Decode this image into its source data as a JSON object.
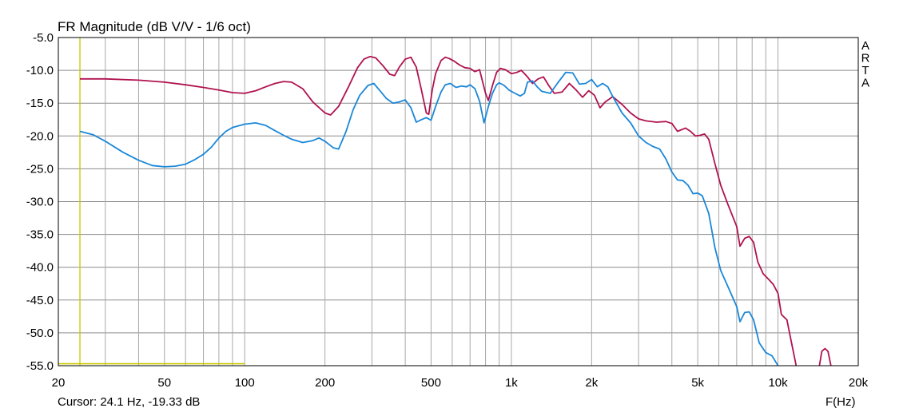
{
  "chart_data": {
    "type": "line",
    "title": "FR Magnitude (dB V/V - 1/6 oct)",
    "xlabel": "F(Hz)",
    "ylabel": "",
    "x_scale": "log",
    "xlim": [
      20,
      20000
    ],
    "ylim": [
      -55,
      -5
    ],
    "x_ticks": [
      {
        "v": 20,
        "label": "20"
      },
      {
        "v": 50,
        "label": "50"
      },
      {
        "v": 100,
        "label": "100"
      },
      {
        "v": 200,
        "label": "200"
      },
      {
        "v": 500,
        "label": "500"
      },
      {
        "v": 1000,
        "label": "1k"
      },
      {
        "v": 2000,
        "label": "2k"
      },
      {
        "v": 5000,
        "label": "5k"
      },
      {
        "v": 10000,
        "label": "10k"
      },
      {
        "v": 20000,
        "label": "20k"
      }
    ],
    "y_ticks": [
      {
        "v": -5,
        "label": "-5.0"
      },
      {
        "v": -10,
        "label": "-10.0"
      },
      {
        "v": -15,
        "label": "-15.0"
      },
      {
        "v": -20,
        "label": "-20.0"
      },
      {
        "v": -25,
        "label": "-25.0"
      },
      {
        "v": -30,
        "label": "-30.0"
      },
      {
        "v": -35,
        "label": "-35.0"
      },
      {
        "v": -40,
        "label": "-40.0"
      },
      {
        "v": -45,
        "label": "-45.0"
      },
      {
        "v": -50,
        "label": "-50.0"
      },
      {
        "v": -55,
        "label": "-55.0"
      }
    ],
    "grid": true,
    "watermark": [
      "A",
      "R",
      "T",
      "A"
    ],
    "cursor_text": "Cursor: 24.1 Hz, -19.33 dB",
    "cursor": {
      "freq": 24.1,
      "h_line_db": -54.7,
      "h_line_end_freq": 100,
      "color": "#c8c800"
    },
    "series": [
      {
        "color": "#b0124f",
        "points": [
          [
            24.1,
            -11.3
          ],
          [
            30,
            -11.3
          ],
          [
            40,
            -11.5
          ],
          [
            50,
            -11.8
          ],
          [
            60,
            -12.2
          ],
          [
            70,
            -12.6
          ],
          [
            80,
            -13.0
          ],
          [
            90,
            -13.4
          ],
          [
            100,
            -13.5
          ],
          [
            110,
            -13.1
          ],
          [
            120,
            -12.5
          ],
          [
            130,
            -12.0
          ],
          [
            140,
            -11.7
          ],
          [
            150,
            -11.8
          ],
          [
            165,
            -12.8
          ],
          [
            180,
            -14.8
          ],
          [
            200,
            -16.5
          ],
          [
            210,
            -16.8
          ],
          [
            225,
            -15.5
          ],
          [
            245,
            -12.5
          ],
          [
            265,
            -9.6
          ],
          [
            280,
            -8.3
          ],
          [
            295,
            -7.9
          ],
          [
            310,
            -8.1
          ],
          [
            330,
            -9.3
          ],
          [
            350,
            -10.6
          ],
          [
            365,
            -10.8
          ],
          [
            380,
            -9.5
          ],
          [
            400,
            -8.3
          ],
          [
            420,
            -8.0
          ],
          [
            440,
            -9.5
          ],
          [
            460,
            -13.0
          ],
          [
            480,
            -16.5
          ],
          [
            490,
            -16.7
          ],
          [
            505,
            -13.0
          ],
          [
            520,
            -10.5
          ],
          [
            545,
            -8.5
          ],
          [
            565,
            -8.0
          ],
          [
            585,
            -8.2
          ],
          [
            610,
            -8.6
          ],
          [
            640,
            -9.2
          ],
          [
            670,
            -9.6
          ],
          [
            700,
            -9.7
          ],
          [
            730,
            -10.2
          ],
          [
            760,
            -9.9
          ],
          [
            800,
            -13.5
          ],
          [
            820,
            -14.6
          ],
          [
            850,
            -12.3
          ],
          [
            880,
            -10.3
          ],
          [
            910,
            -9.7
          ],
          [
            950,
            -9.9
          ],
          [
            1000,
            -10.5
          ],
          [
            1050,
            -10.3
          ],
          [
            1090,
            -10.0
          ],
          [
            1150,
            -11.0
          ],
          [
            1200,
            -12.0
          ],
          [
            1260,
            -11.3
          ],
          [
            1320,
            -11.0
          ],
          [
            1380,
            -12.3
          ],
          [
            1450,
            -13.5
          ],
          [
            1550,
            -13.3
          ],
          [
            1650,
            -12.0
          ],
          [
            1750,
            -13.0
          ],
          [
            1850,
            -14.1
          ],
          [
            1950,
            -13.1
          ],
          [
            2050,
            -13.8
          ],
          [
            2150,
            -15.7
          ],
          [
            2250,
            -14.8
          ],
          [
            2400,
            -14.0
          ],
          [
            2600,
            -15.2
          ],
          [
            2800,
            -16.5
          ],
          [
            3000,
            -17.4
          ],
          [
            3200,
            -17.7
          ],
          [
            3500,
            -17.9
          ],
          [
            3800,
            -17.8
          ],
          [
            4000,
            -18.1
          ],
          [
            4200,
            -19.3
          ],
          [
            4500,
            -18.8
          ],
          [
            4700,
            -19.3
          ],
          [
            4900,
            -20.0
          ],
          [
            5100,
            -19.9
          ],
          [
            5300,
            -19.7
          ],
          [
            5500,
            -20.5
          ],
          [
            5800,
            -24.2
          ],
          [
            6100,
            -27.5
          ],
          [
            6500,
            -30.5
          ],
          [
            7000,
            -33.8
          ],
          [
            7200,
            -36.8
          ],
          [
            7500,
            -35.6
          ],
          [
            7800,
            -35.3
          ],
          [
            8100,
            -36.2
          ],
          [
            8400,
            -39.2
          ],
          [
            8800,
            -41.0
          ],
          [
            9200,
            -41.8
          ],
          [
            9600,
            -42.6
          ],
          [
            10000,
            -44.0
          ],
          [
            10300,
            -47.2
          ],
          [
            10800,
            -48.0
          ],
          [
            11300,
            -52.0
          ],
          [
            11700,
            -55.0
          ]
        ]
      },
      {
        "color": "#b0124f",
        "points": [
          [
            14300,
            -55.0
          ],
          [
            14600,
            -52.8
          ],
          [
            15000,
            -52.4
          ],
          [
            15400,
            -52.8
          ],
          [
            15800,
            -55.0
          ]
        ]
      },
      {
        "color": "#1a87d8",
        "points": [
          [
            24.1,
            -19.3
          ],
          [
            27,
            -19.8
          ],
          [
            30,
            -20.8
          ],
          [
            35,
            -22.5
          ],
          [
            40,
            -23.7
          ],
          [
            45,
            -24.5
          ],
          [
            50,
            -24.7
          ],
          [
            55,
            -24.6
          ],
          [
            60,
            -24.3
          ],
          [
            65,
            -23.6
          ],
          [
            70,
            -22.8
          ],
          [
            75,
            -21.7
          ],
          [
            80,
            -20.3
          ],
          [
            85,
            -19.3
          ],
          [
            90,
            -18.7
          ],
          [
            100,
            -18.2
          ],
          [
            110,
            -18.0
          ],
          [
            120,
            -18.4
          ],
          [
            130,
            -19.2
          ],
          [
            140,
            -19.9
          ],
          [
            150,
            -20.5
          ],
          [
            165,
            -21.0
          ],
          [
            180,
            -20.7
          ],
          [
            190,
            -20.3
          ],
          [
            200,
            -20.8
          ],
          [
            215,
            -21.8
          ],
          [
            225,
            -22.0
          ],
          [
            240,
            -19.3
          ],
          [
            255,
            -16.0
          ],
          [
            270,
            -13.8
          ],
          [
            290,
            -12.3
          ],
          [
            305,
            -12.0
          ],
          [
            320,
            -13.0
          ],
          [
            340,
            -14.3
          ],
          [
            360,
            -15.0
          ],
          [
            380,
            -14.8
          ],
          [
            400,
            -14.5
          ],
          [
            420,
            -15.7
          ],
          [
            440,
            -17.9
          ],
          [
            460,
            -17.5
          ],
          [
            480,
            -17.2
          ],
          [
            500,
            -17.6
          ],
          [
            520,
            -15.5
          ],
          [
            545,
            -13.3
          ],
          [
            565,
            -12.2
          ],
          [
            590,
            -12.0
          ],
          [
            620,
            -12.6
          ],
          [
            650,
            -12.4
          ],
          [
            680,
            -12.5
          ],
          [
            700,
            -12.2
          ],
          [
            730,
            -12.8
          ],
          [
            760,
            -14.7
          ],
          [
            790,
            -18.0
          ],
          [
            820,
            -15.5
          ],
          [
            850,
            -13.5
          ],
          [
            880,
            -12.2
          ],
          [
            900,
            -11.9
          ],
          [
            940,
            -12.3
          ],
          [
            980,
            -13.0
          ],
          [
            1020,
            -13.4
          ],
          [
            1080,
            -13.9
          ],
          [
            1120,
            -13.5
          ],
          [
            1150,
            -11.8
          ],
          [
            1200,
            -11.6
          ],
          [
            1250,
            -12.5
          ],
          [
            1300,
            -13.2
          ],
          [
            1400,
            -13.5
          ],
          [
            1500,
            -11.8
          ],
          [
            1600,
            -10.3
          ],
          [
            1700,
            -10.4
          ],
          [
            1800,
            -12.1
          ],
          [
            1900,
            -12.0
          ],
          [
            2000,
            -11.4
          ],
          [
            2100,
            -12.5
          ],
          [
            2200,
            -12.0
          ],
          [
            2300,
            -12.5
          ],
          [
            2400,
            -14.0
          ],
          [
            2600,
            -16.5
          ],
          [
            2800,
            -18.0
          ],
          [
            3000,
            -20.0
          ],
          [
            3200,
            -21.0
          ],
          [
            3400,
            -21.6
          ],
          [
            3600,
            -22.0
          ],
          [
            3800,
            -23.5
          ],
          [
            4000,
            -25.5
          ],
          [
            4200,
            -26.7
          ],
          [
            4400,
            -26.8
          ],
          [
            4600,
            -27.5
          ],
          [
            4800,
            -28.8
          ],
          [
            5000,
            -28.7
          ],
          [
            5200,
            -29.1
          ],
          [
            5500,
            -31.8
          ],
          [
            5800,
            -37.0
          ],
          [
            6100,
            -40.5
          ],
          [
            6500,
            -43.0
          ],
          [
            7000,
            -46.0
          ],
          [
            7200,
            -48.3
          ],
          [
            7500,
            -46.9
          ],
          [
            7800,
            -46.8
          ],
          [
            8100,
            -48.0
          ],
          [
            8500,
            -51.5
          ],
          [
            9000,
            -53.0
          ],
          [
            9500,
            -53.5
          ],
          [
            10000,
            -55.0
          ]
        ]
      }
    ]
  }
}
